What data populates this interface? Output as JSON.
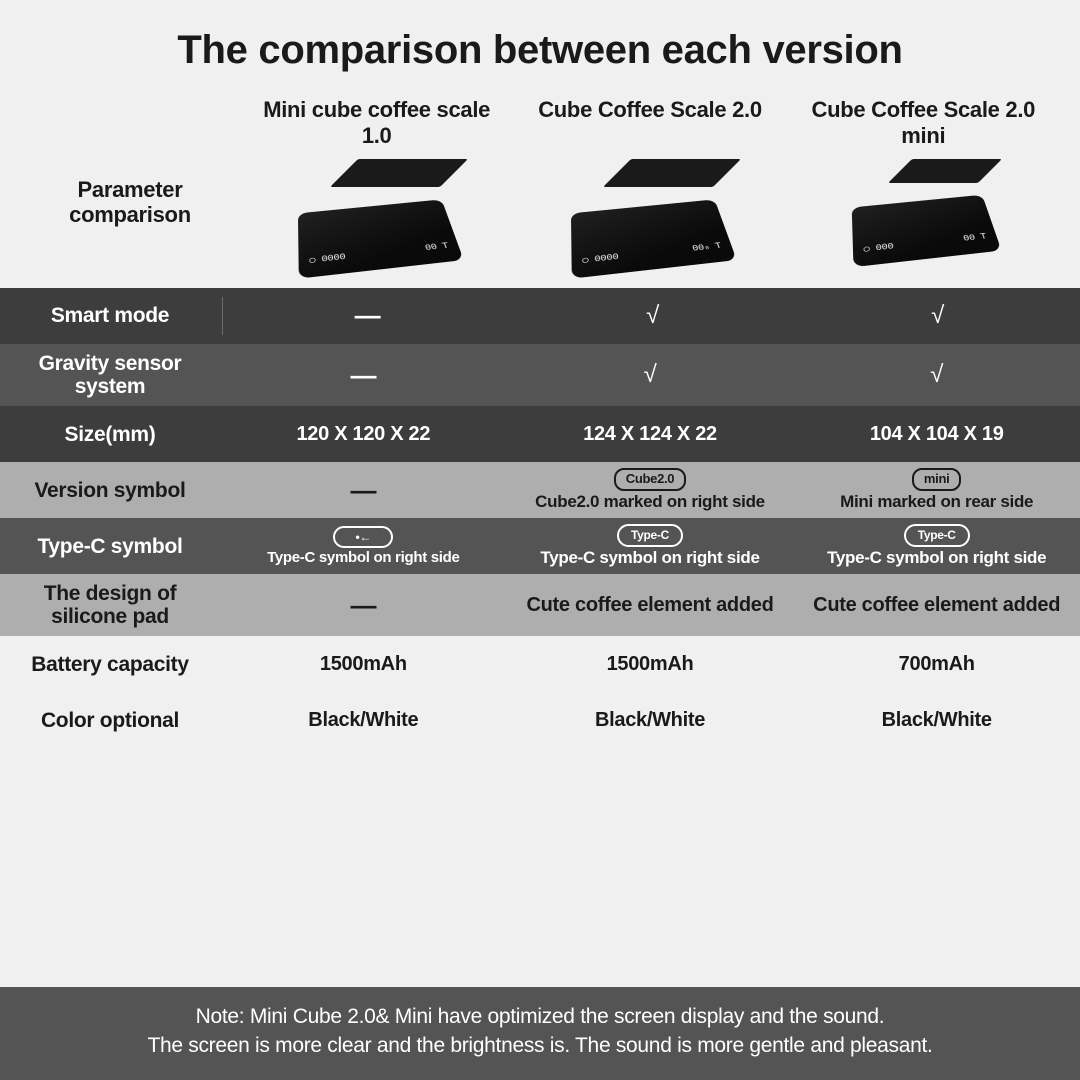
{
  "title": "The comparison between each version",
  "row_header_label": "Parameter comparison",
  "products": [
    {
      "name": "Mini cube coffee scale 1.0",
      "scale_size": "large",
      "disp_left": "○ 0000",
      "disp_right": "00  T"
    },
    {
      "name": "Cube Coffee Scale 2.0",
      "scale_size": "large",
      "disp_left": "○ 0000",
      "disp_right": "00₀ T"
    },
    {
      "name": "Cube Coffee  Scale 2.0 mini",
      "scale_size": "small",
      "disp_left": "○ 000",
      "disp_right": "00  T"
    }
  ],
  "rows": [
    {
      "label": "Smart mode",
      "bg": "dark",
      "text": "light",
      "sep_after_label": true,
      "cells": [
        {
          "type": "dash"
        },
        {
          "type": "check"
        },
        {
          "type": "check"
        }
      ]
    },
    {
      "label": "Gravity sensor system",
      "bg": "mid",
      "text": "light",
      "cells": [
        {
          "type": "dash"
        },
        {
          "type": "check"
        },
        {
          "type": "check"
        }
      ]
    },
    {
      "label": "Size(mm)",
      "bg": "dark",
      "text": "light",
      "cells": [
        {
          "type": "text",
          "value": "120 X 120 X 22"
        },
        {
          "type": "text",
          "value": "124 X 124 X 22"
        },
        {
          "type": "text",
          "value": "104 X 104 X 19"
        }
      ]
    },
    {
      "label": "Version symbol",
      "bg": "grey",
      "text": "dark",
      "cells": [
        {
          "type": "dash"
        },
        {
          "type": "badge",
          "badge": "Cube2.0",
          "sub": "Cube2.0 marked on right side"
        },
        {
          "type": "badge",
          "badge": "mini",
          "sub": "Mini marked on rear side"
        }
      ]
    },
    {
      "label": "Type-C symbol",
      "bg": "mid",
      "text": "light",
      "cells": [
        {
          "type": "pill",
          "badge": "•←",
          "sub": "Type-C symbol on right side",
          "sub_small": true
        },
        {
          "type": "pill",
          "badge": "Type-C",
          "sub": "Type-C symbol on right side"
        },
        {
          "type": "pill",
          "badge": "Type-C",
          "sub": "Type-C symbol on right side"
        }
      ]
    },
    {
      "label": "The design of silicone pad",
      "bg": "grey",
      "text": "dark",
      "cells": [
        {
          "type": "dash"
        },
        {
          "type": "text",
          "value": "Cute coffee element added"
        },
        {
          "type": "text",
          "value": "Cute coffee element added"
        }
      ]
    },
    {
      "label": "Battery capacity",
      "bg": "light",
      "text": "dark",
      "cells": [
        {
          "type": "text",
          "value": "1500mAh"
        },
        {
          "type": "text",
          "value": "1500mAh"
        },
        {
          "type": "text",
          "value": "700mAh"
        }
      ]
    },
    {
      "label": "Color optional",
      "bg": "light",
      "text": "dark",
      "cells": [
        {
          "type": "text",
          "value": "Black/White"
        },
        {
          "type": "text",
          "value": "Black/White"
        },
        {
          "type": "text",
          "value": "Black/White"
        }
      ]
    }
  ],
  "footer_note": "Note: Mini Cube 2.0& Mini have optimized the screen display and the sound.\nThe screen is more clear and the brightness is. The sound is more gentle and pleasant.",
  "colors": {
    "dark": "#3d3d3d",
    "mid": "#545454",
    "grey": "#aeaeae",
    "light": "#f0f0f0",
    "text_light": "#ffffff",
    "text_dark": "#1a1a1a"
  }
}
